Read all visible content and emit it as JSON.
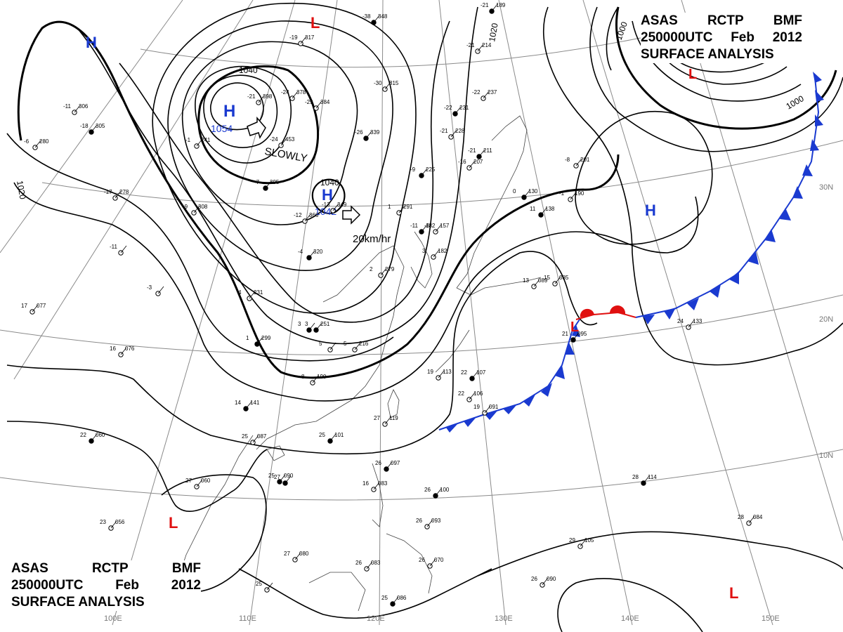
{
  "header": {
    "line1": [
      "ASAS",
      "RCTP",
      "BMF"
    ],
    "line2": [
      "250000UTC",
      "Feb",
      "2012"
    ],
    "line3": "SURFACE ANALYSIS"
  },
  "colors": {
    "high": "#1a3ad0",
    "low": "#e01010",
    "cold_front": "#1a3ad0",
    "warm_front": "#e01010",
    "isobar": "#000000",
    "grid": "#777777"
  },
  "pressure_centers": [
    {
      "type": "H",
      "value": "1054"
    },
    {
      "type": "H",
      "value": "1042"
    },
    {
      "type": "H",
      "value": ""
    },
    {
      "type": "H",
      "value": ""
    },
    {
      "type": "L",
      "value": ""
    },
    {
      "type": "L",
      "value": ""
    },
    {
      "type": "L",
      "value": ""
    },
    {
      "type": "L",
      "value": ""
    },
    {
      "type": "L",
      "value": ""
    }
  ],
  "isobar_labels": [
    "1040",
    "1040",
    "1020",
    "1020",
    "1000",
    "1000"
  ],
  "movement_labels": [
    "SLOWLY",
    "20km/hr"
  ],
  "longitude_labels": [
    "100E",
    "110E",
    "120E",
    "130E",
    "140E",
    "150E"
  ],
  "latitude_labels": [
    "30N",
    "20N",
    "10N"
  ],
  "station_texts": [
    "-38",
    "348",
    "-30",
    "315",
    "-29",
    "384",
    "-26",
    "339",
    "-24",
    "453",
    "-21",
    "398",
    "-22",
    "231",
    "-21",
    "228",
    "-16",
    "207",
    "-9",
    "225",
    "-13",
    "349",
    "-12",
    "366",
    "-4",
    "320",
    "1",
    "291",
    "2",
    "279",
    "3",
    "251",
    "5",
    "216",
    "8",
    "190",
    "14",
    "141",
    "16",
    "076",
    "17",
    "077",
    "22",
    "060",
    "27",
    "060",
    "23",
    "056",
    "25",
    "090",
    "27",
    "080",
    "25",
    "087",
    "25",
    "101",
    "27",
    "119",
    "26",
    "083",
    "26",
    "097",
    "16",
    "083",
    "19",
    "113",
    "22",
    "107",
    "22",
    "106",
    "19",
    "091",
    "26",
    "100",
    "26",
    "093",
    "26",
    "070",
    "25",
    "086",
    "29",
    "105",
    "26",
    "090",
    "28",
    "114",
    "28",
    "084",
    "24",
    "133",
    "21",
    "095",
    "15",
    "085",
    "13",
    "089",
    "11",
    "138",
    "-1",
    "190",
    "-8",
    "201",
    "0",
    "130",
    "-17",
    "278",
    "-11",
    "306",
    "-18",
    "305",
    "-6",
    "280",
    "-9",
    "308",
    "-7",
    "395",
    "-1",
    "241",
    "4",
    "231",
    "1",
    "299",
    "-3",
    "",
    "-11",
    "",
    "3",
    "",
    "5",
    "",
    "25",
    "",
    "27",
    "",
    "-19",
    "317",
    "-24",
    "378",
    "-11",
    "182",
    "-3",
    "157",
    "3",
    "182",
    "-21",
    "211",
    "-22",
    "237",
    "-21",
    "214",
    "-21",
    "189"
  ]
}
